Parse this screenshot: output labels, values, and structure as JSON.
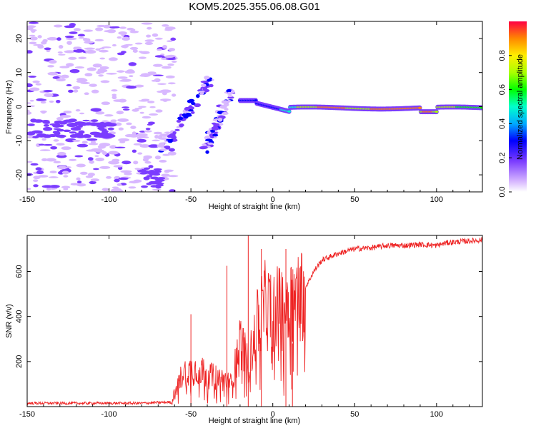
{
  "title": "KOM5.2025.355.06.08.G01",
  "chart_data": [
    {
      "type": "heatmap",
      "xlabel": "Height of straight line (km)",
      "ylabel": "Frequency (Hz)",
      "xlim": [
        -150,
        128
      ],
      "ylim": [
        -25,
        25
      ],
      "xticks": [
        -150,
        -100,
        -50,
        0,
        50,
        100
      ],
      "xtick_labels": [
        "-150",
        "-100",
        "-50",
        "0",
        "50",
        "100"
      ],
      "yticks": [
        -20,
        -10,
        0,
        10,
        20
      ],
      "ytick_labels": [
        "-20",
        "-10",
        "0",
        "10",
        "20"
      ],
      "colorbar": {
        "label": "Normalized spectral amplitude",
        "range": [
          0,
          1
        ],
        "ticks": [
          0.0,
          0.2,
          0.4,
          0.6,
          0.8
        ],
        "tick_labels": [
          "0.0",
          "0.2",
          "0.4",
          "0.6",
          "0.8"
        ]
      },
      "features": [
        {
          "name": "carrier-ridge",
          "x_range": [
            -20,
            128
          ],
          "freq_hz_approx": [
            1.5,
            -2
          ]
        },
        {
          "name": "diagonal-streak-1",
          "x_from": -68,
          "x_to": -38,
          "freq_from_hz": -13,
          "freq_to_hz": 8
        },
        {
          "name": "diagonal-streak-2",
          "x_from": -42,
          "x_to": -25,
          "freq_from_hz": -13,
          "freq_to_hz": 5
        },
        {
          "name": "low-amplitude-noise",
          "x_range": [
            -150,
            -60
          ],
          "freq_range_hz": [
            -25,
            25
          ]
        }
      ]
    },
    {
      "type": "line",
      "xlabel": "Height of straight line (km)",
      "ylabel": "SNR (v/v)",
      "xlim": [
        -150,
        128
      ],
      "ylim": [
        0,
        760
      ],
      "xticks": [
        -150,
        -100,
        -50,
        0,
        50,
        100
      ],
      "xtick_labels": [
        "-150",
        "-100",
        "-50",
        "0",
        "50",
        "100"
      ],
      "yticks": [
        200,
        400,
        600
      ],
      "ytick_labels": [
        "200",
        "400",
        "600"
      ],
      "series": [
        {
          "name": "SNR",
          "color": "#ee2222",
          "x": [
            -150,
            -140,
            -130,
            -120,
            -110,
            -100,
            -90,
            -80,
            -70,
            -62,
            -60,
            -55,
            -50,
            -45,
            -40,
            -35,
            -30,
            -25,
            -20,
            -15,
            -10,
            -5,
            0,
            5,
            10,
            15,
            20,
            25,
            30,
            40,
            50,
            60,
            70,
            80,
            90,
            100,
            105,
            110,
            120,
            128
          ],
          "values": [
            15,
            15,
            15,
            15,
            15,
            15,
            15,
            15,
            18,
            20,
            60,
            150,
            160,
            170,
            140,
            130,
            120,
            100,
            300,
            180,
            350,
            450,
            430,
            440,
            470,
            480,
            530,
            600,
            650,
            680,
            700,
            705,
            715,
            715,
            720,
            715,
            725,
            730,
            735,
            740
          ]
        }
      ],
      "spikes": [
        {
          "x": -50,
          "value": 410
        },
        {
          "x": -28,
          "value": 625
        },
        {
          "x": -15,
          "value": 760
        },
        {
          "x": -7,
          "value": 700
        },
        {
          "x": 8,
          "value": 700
        },
        {
          "x": 12,
          "value": 280
        }
      ]
    }
  ]
}
